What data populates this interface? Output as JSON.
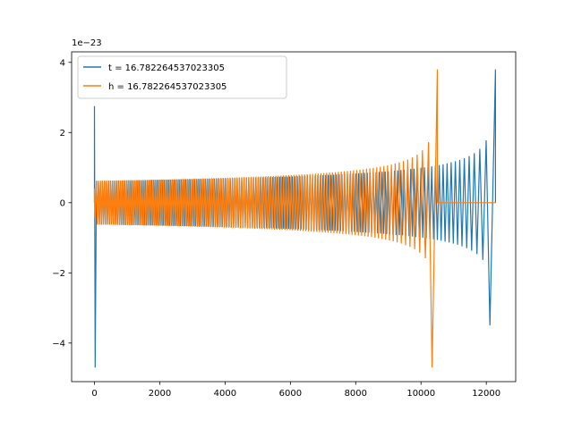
{
  "chart_data": {
    "type": "line",
    "title": "",
    "xlabel": "",
    "ylabel": "",
    "y_offset_text": "1e−23",
    "xlim": [
      -700,
      12900
    ],
    "ylim": [
      -5.1,
      4.3
    ],
    "x_ticks": [
      0,
      2000,
      4000,
      6000,
      8000,
      10000,
      12000
    ],
    "x_tick_labels": [
      "0",
      "2000",
      "4000",
      "6000",
      "8000",
      "10000",
      "12000"
    ],
    "y_ticks": [
      -4,
      -2,
      0,
      2,
      4
    ],
    "y_tick_labels": [
      "−4",
      "−2",
      "0",
      "2",
      "4"
    ],
    "grid": false,
    "legend_position": "upper-left",
    "series": [
      {
        "name": "t = 16.782264537023305",
        "color": "#1f77b4",
        "spike_at": 0,
        "spike_range": [
          -4.7,
          2.75
        ],
        "base_envelope": 0.62,
        "chirp_start": 0,
        "chirp_end": 12280,
        "chirp_peak": [
          -3.5,
          3.8
        ],
        "cycles": 150
      },
      {
        "name": "h = 16.782264537023305",
        "color": "#ff7f0e",
        "spike_at": 0,
        "spike_range": [
          -0.4,
          0.4
        ],
        "base_envelope": 0.62,
        "chirp_start": 0,
        "chirp_end": 10500,
        "chirp_peak": [
          -4.7,
          3.8
        ],
        "flat_after": [
          10500,
          12280
        ],
        "cycles": 130
      }
    ]
  }
}
